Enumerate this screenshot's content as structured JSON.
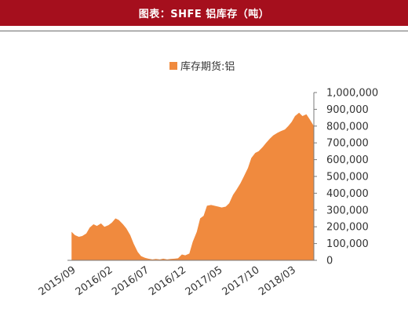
{
  "header": {
    "title": "图表：SHFE 铝库存（吨）"
  },
  "chart_data": {
    "type": "area",
    "legend": {
      "label": "库存期货:铝",
      "color": "#f08a3e",
      "position": "top-center"
    },
    "color": "#f08a3e",
    "y_axis": {
      "side": "right",
      "ylim": [
        0,
        1000000
      ],
      "ticks": [
        0,
        100000,
        200000,
        300000,
        400000,
        500000,
        600000,
        700000,
        800000,
        900000,
        1000000
      ],
      "tick_labels": [
        "0",
        "100,000",
        "200,000",
        "300,000",
        "400,000",
        "500,000",
        "600,000",
        "700,000",
        "800,000",
        "900,000",
        "1,000,000"
      ]
    },
    "x_axis": {
      "start": "2015/09",
      "end": "2018/06",
      "tick_labels": [
        "2015/09",
        "2016/02",
        "2016/07",
        "2016/12",
        "2017/05",
        "2017/10",
        "2018/03"
      ],
      "rotation_deg": -35
    },
    "series": [
      {
        "name": "库存期货:铝",
        "x": [
          "2015-09-01",
          "2015-09-15",
          "2015-10-01",
          "2015-10-15",
          "2015-11-01",
          "2015-11-15",
          "2015-12-01",
          "2015-12-15",
          "2016-01-01",
          "2016-01-15",
          "2016-02-01",
          "2016-02-15",
          "2016-03-01",
          "2016-03-15",
          "2016-04-01",
          "2016-04-15",
          "2016-05-01",
          "2016-05-15",
          "2016-06-01",
          "2016-06-15",
          "2016-07-01",
          "2016-07-15",
          "2016-08-01",
          "2016-08-15",
          "2016-09-01",
          "2016-09-15",
          "2016-10-01",
          "2016-10-15",
          "2016-11-01",
          "2016-11-15",
          "2016-12-01",
          "2016-12-15",
          "2017-01-01",
          "2017-01-15",
          "2017-02-01",
          "2017-02-15",
          "2017-03-01",
          "2017-03-15",
          "2017-04-01",
          "2017-04-15",
          "2017-05-01",
          "2017-05-15",
          "2017-06-01",
          "2017-06-15",
          "2017-07-01",
          "2017-07-15",
          "2017-08-01",
          "2017-08-15",
          "2017-09-01",
          "2017-09-15",
          "2017-10-01",
          "2017-10-15",
          "2017-11-01",
          "2017-11-15",
          "2017-12-01",
          "2017-12-15",
          "2018-01-01",
          "2018-01-15",
          "2018-02-01",
          "2018-02-15",
          "2018-03-01",
          "2018-03-15",
          "2018-04-01",
          "2018-04-15",
          "2018-05-01",
          "2018-05-15",
          "2018-06-01"
        ],
        "values": [
          170000,
          150000,
          140000,
          145000,
          160000,
          195000,
          215000,
          205000,
          220000,
          200000,
          210000,
          225000,
          250000,
          240000,
          215000,
          190000,
          150000,
          100000,
          50000,
          25000,
          15000,
          10000,
          5000,
          8000,
          5000,
          10000,
          5000,
          8000,
          10000,
          12000,
          35000,
          30000,
          40000,
          110000,
          170000,
          250000,
          265000,
          325000,
          330000,
          325000,
          320000,
          315000,
          320000,
          340000,
          390000,
          420000,
          460000,
          500000,
          550000,
          610000,
          640000,
          650000,
          675000,
          700000,
          725000,
          745000,
          760000,
          770000,
          780000,
          800000,
          825000,
          860000,
          880000,
          860000,
          870000,
          840000,
          800000
        ]
      }
    ],
    "grid": false
  }
}
